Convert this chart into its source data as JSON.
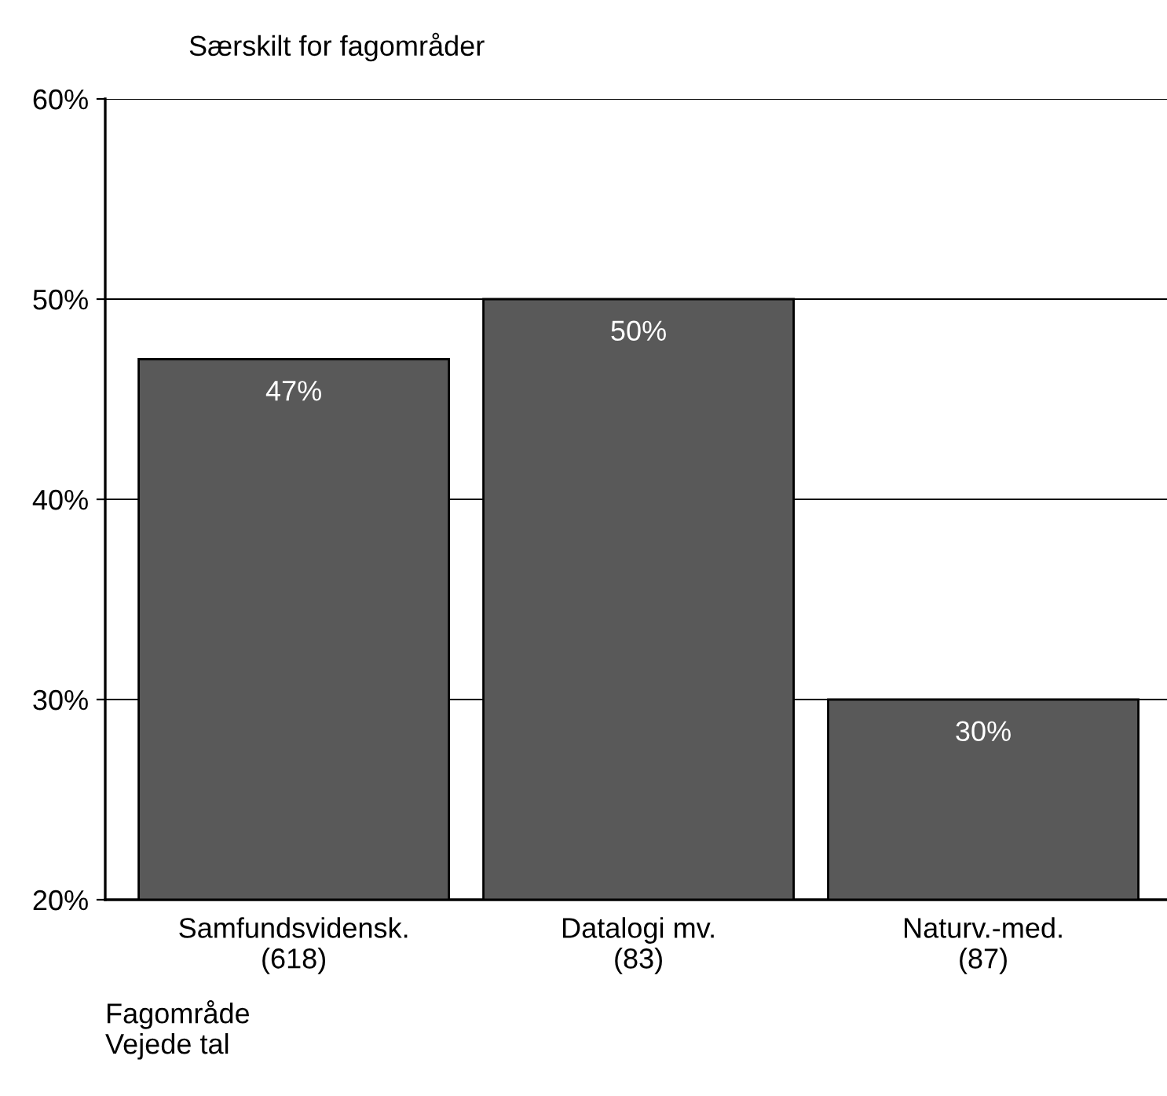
{
  "chart_data": {
    "type": "bar",
    "title": "Særskilt for fagområder",
    "categories": [
      "Samfundsvidensk.\n(618)",
      "Datalogi mv.\n(83)",
      "Naturv.-med.\n(87)"
    ],
    "values": [
      47,
      50,
      30
    ],
    "color": "#595959",
    "value_labels": [
      "47%",
      "50%",
      "30%"
    ],
    "xlabel": "Fagområde\nVejede tal",
    "ylim": [
      20,
      60
    ],
    "yticks": [
      {
        "value": 20,
        "label": "20%"
      },
      {
        "value": 30,
        "label": "30%"
      },
      {
        "value": 40,
        "label": "40%"
      },
      {
        "value": 50,
        "label": "50%"
      },
      {
        "value": 60,
        "label": "60%"
      }
    ],
    "grid": "y",
    "legend": false
  }
}
